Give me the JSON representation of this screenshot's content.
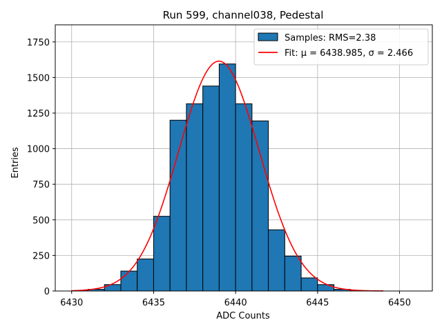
{
  "chart_data": {
    "type": "bar",
    "title": "Run 599, channel038, Pedestal",
    "xlabel": "ADC Counts",
    "ylabel": "Entries",
    "xlim": [
      6429.0,
      6452.0
    ],
    "ylim": [
      0,
      1870
    ],
    "xticks": [
      6430,
      6435,
      6440,
      6445,
      6450
    ],
    "yticks": [
      0,
      250,
      500,
      750,
      1000,
      1250,
      1500,
      1750
    ],
    "grid": true,
    "legend_position": "top-right",
    "histogram": {
      "name": "Samples: RMS=2.38",
      "color": "#1f77b4",
      "edgecolor": "#000000",
      "bin_edges": [
        6430,
        6431,
        6432,
        6433,
        6434,
        6435,
        6436,
        6437,
        6438,
        6439,
        6440,
        6441,
        6442,
        6443,
        6444,
        6445,
        6446,
        6447,
        6448,
        6449
      ],
      "counts": [
        2,
        12,
        45,
        140,
        225,
        525,
        1200,
        1315,
        1440,
        1595,
        1315,
        1195,
        430,
        245,
        92,
        45,
        12,
        3,
        1
      ]
    },
    "fit": {
      "name": "Fit: μ = 6438.985, σ = 2.466",
      "color": "#ff0000",
      "mu": 6438.985,
      "sigma": 2.466,
      "amplitude": 1615,
      "x_range": [
        6430,
        6449
      ]
    }
  }
}
